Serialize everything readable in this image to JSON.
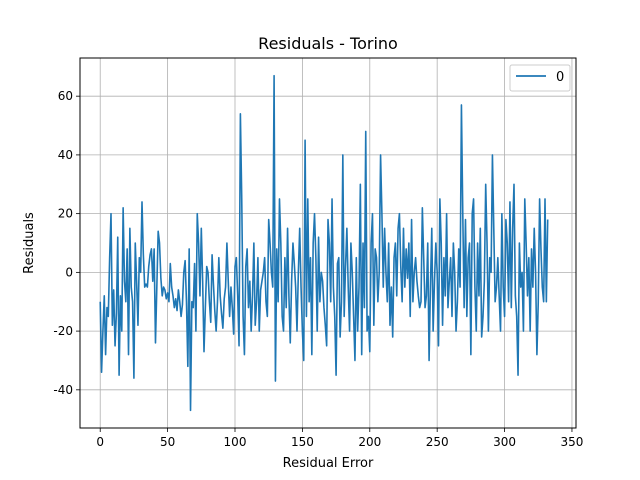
{
  "chart_data": {
    "type": "line",
    "title": "Residuals - Torino",
    "xlabel": "Residual Error",
    "ylabel": "Residuals",
    "xlim": [
      -15,
      353
    ],
    "ylim": [
      -53,
      73
    ],
    "xticks": [
      0,
      50,
      100,
      150,
      200,
      250,
      300,
      350
    ],
    "yticks": [
      -40,
      -20,
      0,
      20,
      40,
      60
    ],
    "grid": true,
    "legend_position": "top-right",
    "series": [
      {
        "name": "0",
        "color": "#1f77b4",
        "x_start": 0,
        "x_step": 1,
        "values": [
          -10,
          -34,
          -20,
          -8,
          -28,
          -12,
          -15,
          5,
          20,
          -18,
          -6,
          -25,
          -14,
          12,
          -35,
          -8,
          -20,
          22,
          -3,
          -10,
          8,
          -28,
          15,
          -5,
          -10,
          -36,
          10,
          -3,
          -18,
          5,
          0,
          24,
          6,
          -5,
          -4,
          -5,
          2,
          6,
          8,
          -3,
          8,
          -24,
          -5,
          14,
          10,
          -2,
          -8,
          -5,
          -6,
          -9,
          -7,
          -10,
          3,
          -5,
          -8,
          -12,
          -9,
          -13,
          -6,
          -10,
          -15,
          -11,
          0,
          4,
          -10,
          -32,
          8,
          -47,
          -10,
          -12,
          3,
          -20,
          20,
          10,
          -8,
          15,
          -3,
          -27,
          -12,
          2,
          0,
          -10,
          -17,
          6,
          -4,
          -13,
          -20,
          -10,
          5,
          -8,
          -14,
          -19,
          -9,
          -5,
          10,
          -3,
          -15,
          -5,
          -12,
          -21,
          2,
          5,
          -8,
          -25,
          54,
          25,
          -15,
          -28,
          2,
          8,
          -12,
          -3,
          -20,
          -8,
          10,
          -18,
          -10,
          5,
          -20,
          -6,
          -3,
          0,
          5,
          -10,
          -15,
          18,
          10,
          0,
          -5,
          67,
          -37,
          8,
          -10,
          25,
          10,
          -15,
          -20,
          5,
          -12,
          15,
          -8,
          -24,
          -3,
          10,
          3,
          -5,
          -20,
          0,
          15,
          -5,
          -20,
          -30,
          45,
          -15,
          25,
          -10,
          5,
          -28,
          10,
          20,
          5,
          -20,
          12,
          -10,
          0,
          -3,
          -12,
          -18,
          -25,
          18,
          10,
          -10,
          25,
          -5,
          -15,
          -35,
          3,
          5,
          -22,
          -10,
          40,
          -15,
          2,
          15,
          -5,
          -20,
          10,
          0,
          -15,
          -30,
          5,
          -20,
          -5,
          30,
          -28,
          10,
          -12,
          48,
          -20,
          -15,
          -27,
          10,
          20,
          -18,
          8,
          5,
          -10,
          0,
          40,
          20,
          -5,
          15,
          0,
          -10,
          10,
          -18,
          -5,
          -22,
          5,
          10,
          -8,
          15,
          20,
          2,
          -10,
          15,
          -5,
          8,
          -2,
          10,
          -15,
          18,
          -10,
          0,
          5,
          -3,
          -8,
          -12,
          -10,
          22,
          5,
          -12,
          -8,
          10,
          -30,
          -5,
          15,
          -20,
          -3,
          10,
          0,
          -25,
          25,
          10,
          -18,
          5,
          -8,
          20,
          -12,
          -3,
          5,
          -15,
          10,
          0,
          -20,
          -10,
          8,
          -5,
          57,
          20,
          -12,
          18,
          -15,
          5,
          10,
          -28,
          20,
          25,
          -5,
          -20,
          10,
          -8,
          15,
          -22,
          -15,
          -3,
          30,
          10,
          -20,
          5,
          0,
          40,
          15,
          -10,
          -5,
          5,
          -8,
          -20,
          20,
          -5,
          -15,
          18,
          10,
          -10,
          24,
          -12,
          15,
          30,
          -8,
          -15,
          -35,
          10,
          -5,
          0,
          -20,
          25,
          10,
          -8,
          5,
          -20,
          8,
          -5,
          15,
          0,
          -28,
          -10,
          25,
          8,
          -5,
          -10,
          25,
          -10,
          18
        ]
      }
    ]
  }
}
